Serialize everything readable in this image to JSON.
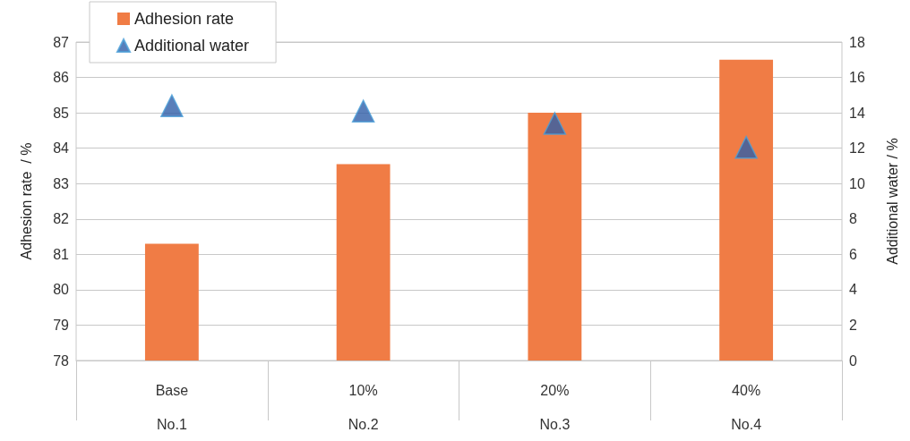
{
  "chart_data": {
    "type": "bar",
    "ylabel": "Adhesion rate  / %",
    "y2label": "Additional water / %",
    "categories": [
      "Base\nNo.1",
      "10%\nNo.2",
      "20%\nNo.3",
      "40%\nNo.4"
    ],
    "series": [
      {
        "name": "Adhesion rate",
        "color": "#f07c45",
        "values": [
          81.3,
          83.55,
          85,
          86.5
        ]
      },
      {
        "name": "Additional water",
        "type": "scatter",
        "axis": "y2",
        "marker": "triangle",
        "color": "#2f5ea8",
        "values": [
          14.4,
          14.1,
          13.4,
          12.05
        ]
      }
    ],
    "ylim": [
      78,
      87
    ],
    "yticks": [
      78,
      79,
      80,
      81,
      82,
      83,
      84,
      85,
      86,
      87
    ],
    "y2lim": [
      0,
      18
    ],
    "y2ticks": [
      0,
      2,
      4,
      6,
      8,
      10,
      12,
      14,
      16,
      18
    ],
    "grid": "y",
    "legend": "top left"
  }
}
